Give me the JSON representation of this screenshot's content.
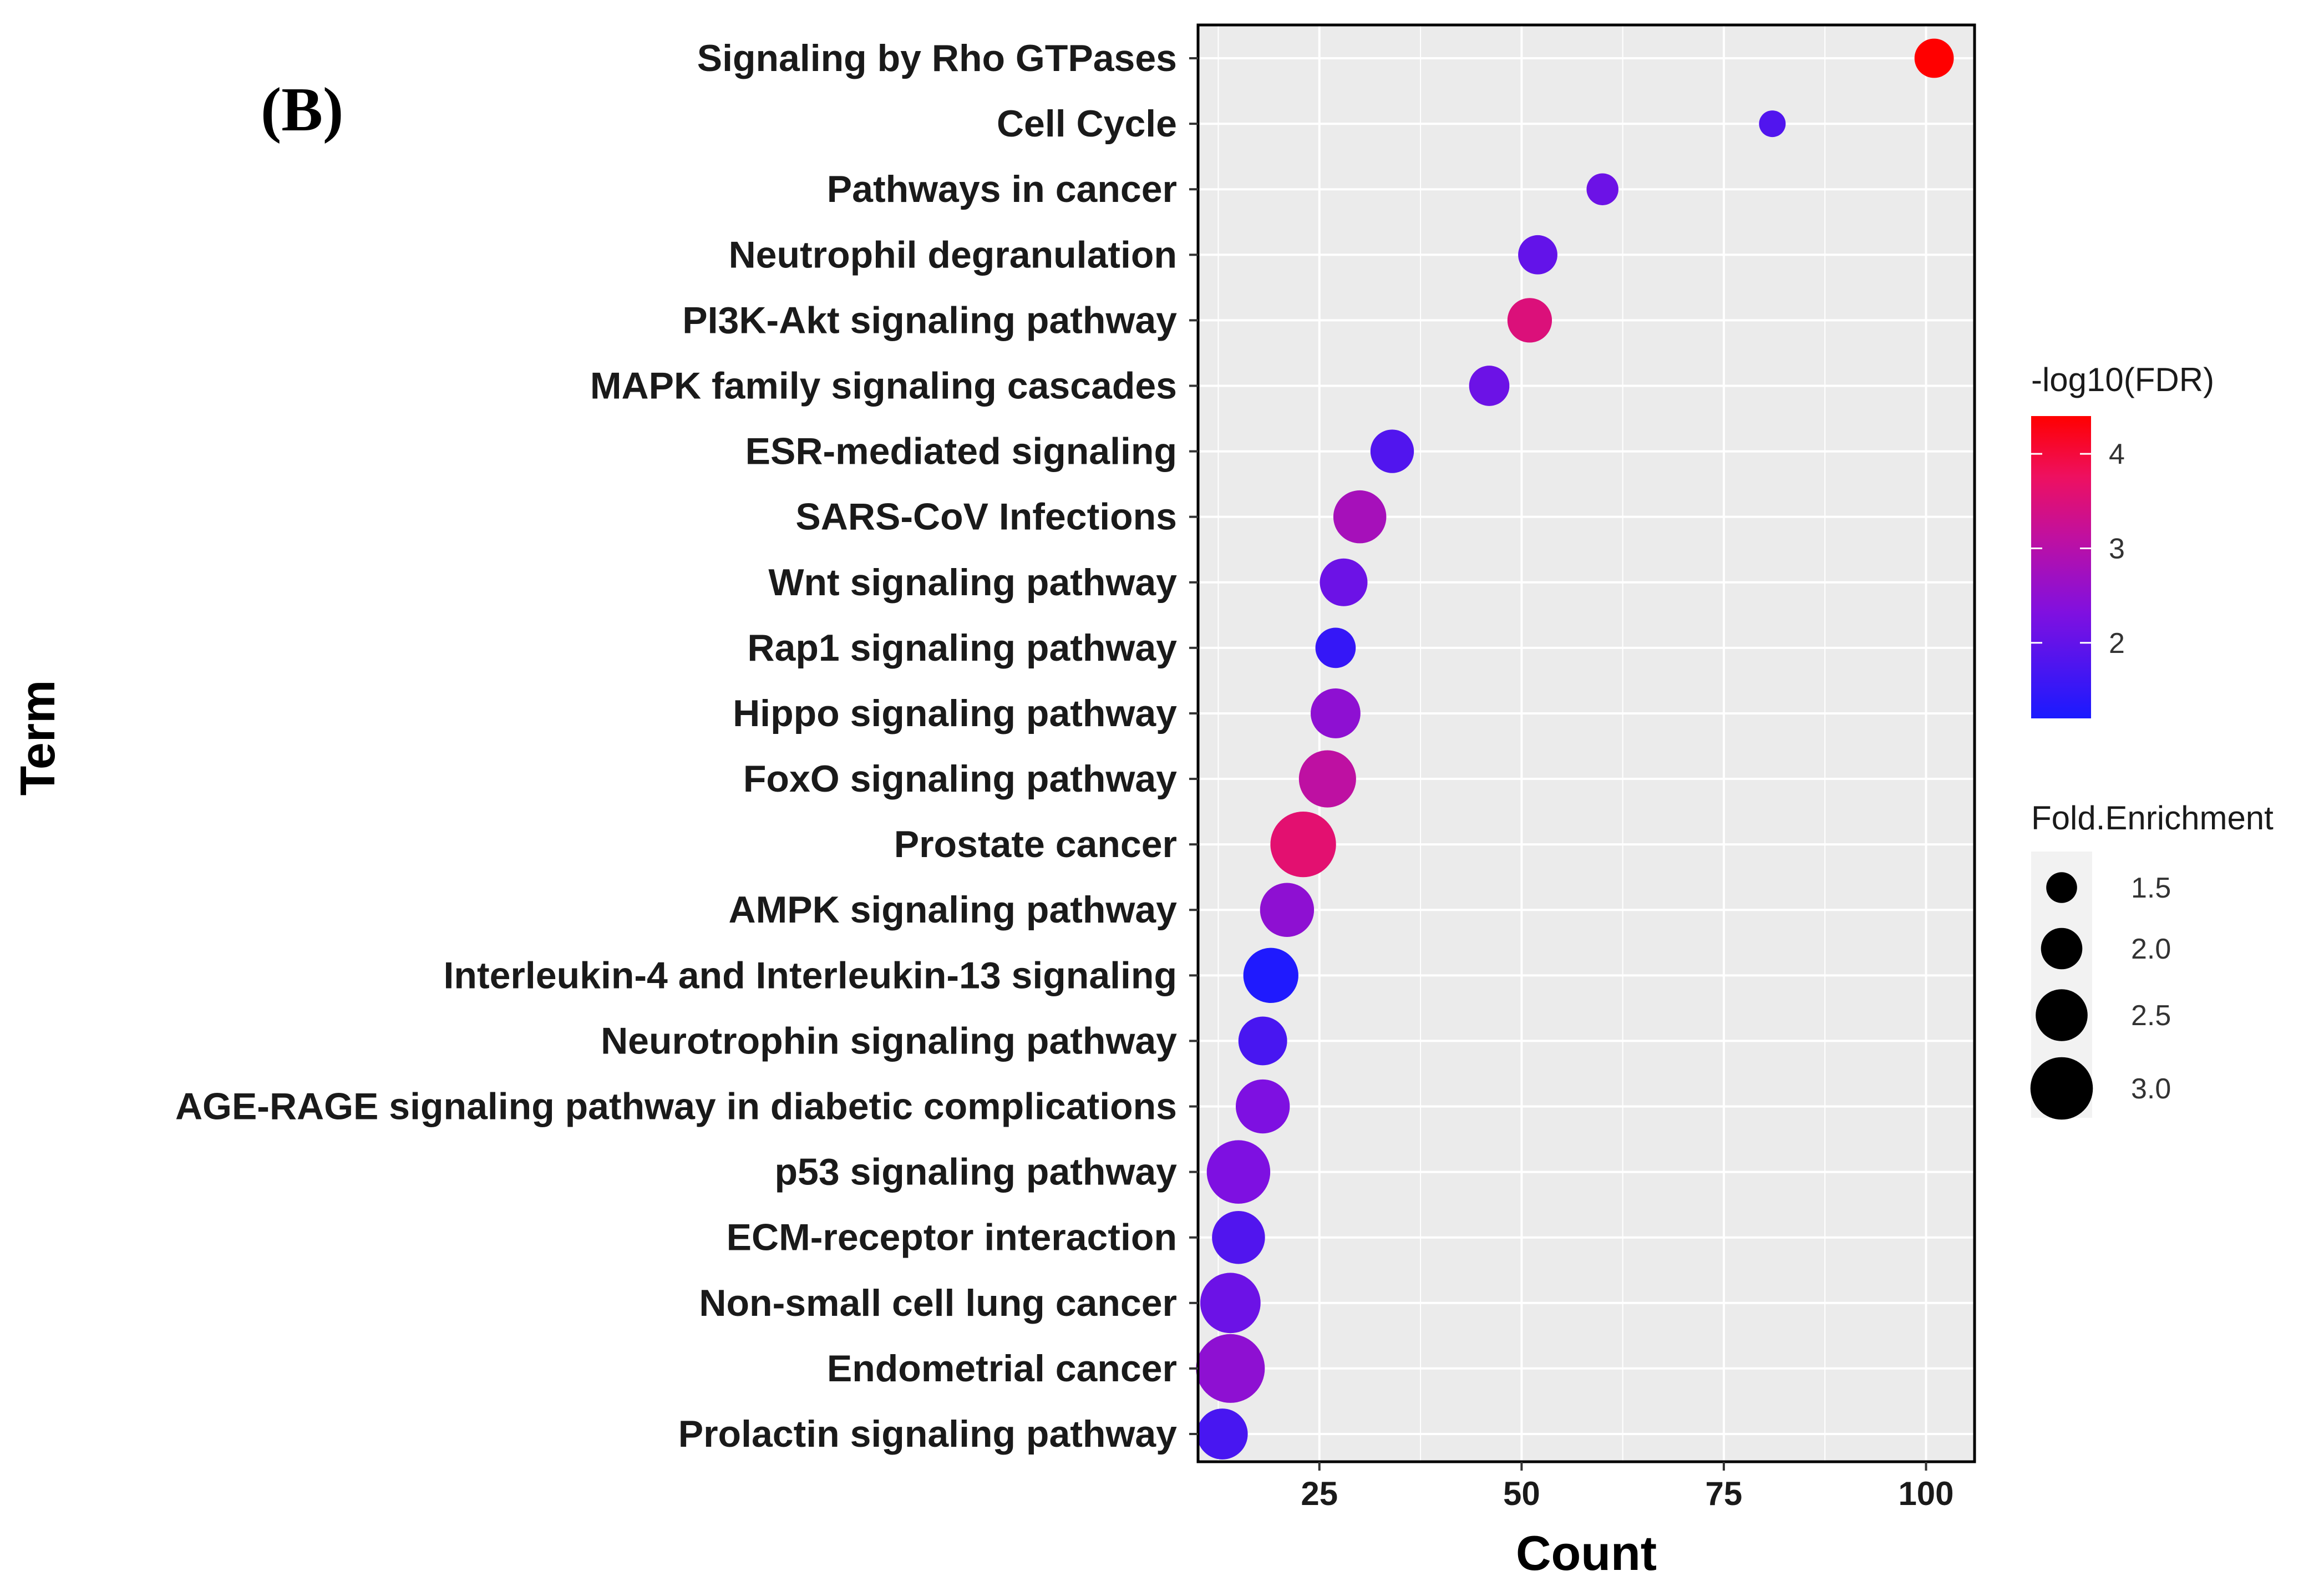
{
  "chart_data": {
    "type": "scatter",
    "panel_label": "(B)",
    "xlabel": "Count",
    "ylabel": "Term",
    "xlim": [
      10,
      106
    ],
    "x_ticks": [
      25,
      50,
      75,
      100
    ],
    "grid": true,
    "size_variable": "Fold.Enrichment",
    "color_variable": "-log10(FDR)",
    "color_low": "#1a1aff",
    "color_high": "#ff0000",
    "color_legend": {
      "title": "-log10(FDR)",
      "range": [
        1.2,
        4.4
      ],
      "ticks": [
        2,
        3,
        4
      ]
    },
    "size_legend": {
      "title": "Fold.Enrichment",
      "range": [
        1.3,
        3.3
      ],
      "values": [
        1.5,
        2.0,
        2.5,
        3.0
      ],
      "labels": [
        "1.5",
        "2.0",
        "2.5",
        "3.0"
      ]
    },
    "points": [
      {
        "term": "Signaling by Rho GTPases",
        "count": 101,
        "fold_enrichment": 1.9,
        "neg_log10_fdr": 4.4
      },
      {
        "term": "Cell Cycle",
        "count": 81,
        "fold_enrichment": 1.3,
        "neg_log10_fdr": 1.8
      },
      {
        "term": "Pathways in cancer",
        "count": 60,
        "fold_enrichment": 1.55,
        "neg_log10_fdr": 2.1
      },
      {
        "term": "Neutrophil degranulation",
        "count": 52,
        "fold_enrichment": 1.9,
        "neg_log10_fdr": 2.0
      },
      {
        "term": "PI3K-Akt signaling pathway",
        "count": 51,
        "fold_enrichment": 2.15,
        "neg_log10_fdr": 3.5
      },
      {
        "term": "MAPK family signaling cascades",
        "count": 46,
        "fold_enrichment": 1.95,
        "neg_log10_fdr": 2.1
      },
      {
        "term": "ESR-mediated signaling",
        "count": 34,
        "fold_enrichment": 2.1,
        "neg_log10_fdr": 1.8
      },
      {
        "term": "SARS-CoV Infections",
        "count": 30,
        "fold_enrichment": 2.55,
        "neg_log10_fdr": 2.8
      },
      {
        "term": "Wnt signaling pathway",
        "count": 28,
        "fold_enrichment": 2.3,
        "neg_log10_fdr": 2.1
      },
      {
        "term": "Rap1 signaling pathway",
        "count": 27,
        "fold_enrichment": 1.95,
        "neg_log10_fdr": 1.5
      },
      {
        "term": "Hippo signaling pathway",
        "count": 27,
        "fold_enrichment": 2.4,
        "neg_log10_fdr": 2.5
      },
      {
        "term": "FoxO signaling pathway",
        "count": 26,
        "fold_enrichment": 2.75,
        "neg_log10_fdr": 3.1
      },
      {
        "term": "Prostate cancer",
        "count": 23,
        "fold_enrichment": 3.15,
        "neg_log10_fdr": 3.6
      },
      {
        "term": "AMPK signaling pathway",
        "count": 21,
        "fold_enrichment": 2.6,
        "neg_log10_fdr": 2.5
      },
      {
        "term": "Interleukin-4 and Interleukin-13 signaling",
        "count": 19,
        "fold_enrichment": 2.65,
        "neg_log10_fdr": 1.25
      },
      {
        "term": "Neurotrophin signaling pathway",
        "count": 18,
        "fold_enrichment": 2.35,
        "neg_log10_fdr": 1.7
      },
      {
        "term": "AGE-RAGE signaling pathway in diabetic complications",
        "count": 18,
        "fold_enrichment": 2.6,
        "neg_log10_fdr": 2.3
      },
      {
        "term": "p53 signaling pathway",
        "count": 15,
        "fold_enrichment": 3.05,
        "neg_log10_fdr": 2.3
      },
      {
        "term": "ECM-receptor interaction",
        "count": 15,
        "fold_enrichment": 2.55,
        "neg_log10_fdr": 1.8
      },
      {
        "term": "Non-small cell lung cancer",
        "count": 14,
        "fold_enrichment": 2.9,
        "neg_log10_fdr": 2.1
      },
      {
        "term": "Endometrial cancer",
        "count": 14,
        "fold_enrichment": 3.3,
        "neg_log10_fdr": 2.5
      },
      {
        "term": "Prolactin signaling pathway",
        "count": 13,
        "fold_enrichment": 2.45,
        "neg_log10_fdr": 1.7
      }
    ]
  }
}
